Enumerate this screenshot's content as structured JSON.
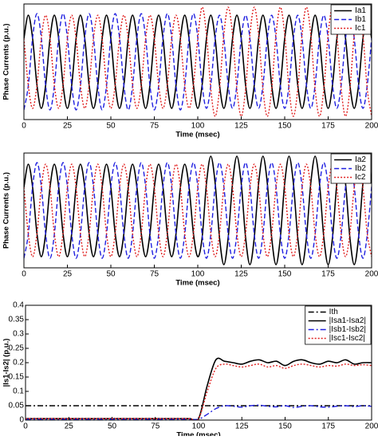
{
  "chart_data": [
    {
      "type": "line",
      "xlabel": "Time (msec)",
      "ylabel": "Phase Currents (p.u.)",
      "legend": "upper right",
      "xlim": [
        0,
        200
      ],
      "ylim": [
        -1.8,
        1.8
      ],
      "xticks": [
        0,
        25,
        50,
        75,
        100,
        125,
        150,
        175,
        200
      ],
      "x": [
        0,
        2.5,
        5,
        7.5,
        10,
        12.5,
        15,
        17.5,
        20,
        22.5,
        25,
        27.5,
        30,
        32.5,
        35,
        37.5,
        40,
        42.5,
        45,
        47.5,
        50,
        52.5,
        55,
        57.5,
        60,
        62.5,
        65,
        67.5,
        70,
        72.5,
        75,
        77.5,
        80,
        82.5,
        85,
        87.5,
        90,
        92.5,
        95,
        97.5,
        100,
        102.5,
        105,
        107.5,
        110,
        112.5,
        115,
        117.5,
        120,
        122.5,
        125,
        127.5,
        130,
        132.5,
        135,
        137.5,
        140,
        142.5,
        145,
        147.5,
        150,
        152.5,
        155,
        157.5,
        160,
        162.5,
        165,
        167.5,
        170,
        172.5,
        175,
        177.5,
        180,
        182.5,
        185,
        187.5,
        190,
        192.5,
        195,
        197.5,
        200
      ],
      "series": [
        {
          "name": "Ia1",
          "color": "#000000",
          "dash": "solid",
          "values": [
            0.725,
            1.45,
            0.725,
            -0.725,
            -1.45,
            -0.725,
            0.725,
            1.45,
            0.725,
            -0.725,
            -1.45,
            -0.725,
            0.725,
            1.45,
            0.725,
            -0.725,
            -1.45,
            -0.725,
            0.725,
            1.45,
            0.725,
            -0.725,
            -1.45,
            -0.725,
            0.725,
            1.45,
            0.725,
            -0.725,
            -1.45,
            -0.725,
            0.725,
            1.45,
            0.725,
            -0.725,
            -1.45,
            -0.725,
            0.725,
            1.45,
            0.725,
            -0.725,
            -1.45,
            -0.725,
            0.725,
            1.45,
            0.725,
            -0.725,
            -1.45,
            -0.725,
            0.725,
            1.45,
            0.725,
            -0.725,
            -1.45,
            -0.725,
            0.725,
            1.45,
            0.725,
            -0.725,
            -1.45,
            -0.725,
            0.725,
            1.45,
            0.725,
            -0.725,
            -1.45,
            -0.725,
            0.725,
            1.45,
            0.725,
            -0.725,
            -1.45,
            -0.725,
            0.725,
            1.45,
            0.725,
            -0.725,
            -1.45,
            -0.725,
            0.725,
            1.45,
            0.725
          ]
        },
        {
          "name": "Ib1",
          "color": "#1f1fe0",
          "dash": "dashed",
          "values": [
            -1.5,
            -0.75,
            0.75,
            1.5,
            0.75,
            -0.75,
            -1.5,
            -0.75,
            0.75,
            1.5,
            0.75,
            -0.75,
            -1.5,
            -0.75,
            0.75,
            1.5,
            0.75,
            -0.75,
            -1.5,
            -0.75,
            0.75,
            1.5,
            0.75,
            -0.75,
            -1.5,
            -0.75,
            0.75,
            1.5,
            0.75,
            -0.75,
            -1.5,
            -0.75,
            0.75,
            1.5,
            0.75,
            -0.75,
            -1.5,
            -0.75,
            0.75,
            1.5,
            0.75,
            -0.725,
            -1.45,
            -0.725,
            0.725,
            1.45,
            0.725,
            -0.725,
            -1.45,
            -0.725,
            0.725,
            1.45,
            0.725,
            -0.725,
            -1.45,
            -0.725,
            0.725,
            1.45,
            0.725,
            -0.725,
            -1.45,
            -0.725,
            0.725,
            1.45,
            0.725,
            -0.725,
            -1.45,
            -0.725,
            0.725,
            1.45,
            0.725,
            -0.725,
            -1.45,
            -0.725,
            0.725,
            1.45,
            0.725,
            -0.725,
            -1.45,
            -0.725,
            0.725
          ]
        },
        {
          "name": "Ic1",
          "color": "#e01f1f",
          "dash": "dotted",
          "values": [
            0.725,
            -0.725,
            -1.45,
            -0.725,
            0.725,
            1.45,
            0.725,
            -0.725,
            -1.45,
            -0.725,
            0.725,
            1.45,
            0.725,
            -0.725,
            -1.45,
            -0.725,
            0.725,
            1.45,
            0.725,
            -0.725,
            -1.45,
            -0.725,
            0.725,
            1.45,
            0.725,
            -0.725,
            -1.45,
            -0.725,
            0.725,
            1.45,
            0.725,
            -0.725,
            -1.45,
            -0.725,
            0.725,
            1.45,
            0.725,
            -0.725,
            -1.45,
            -0.725,
            0.725,
            1.7,
            0.85,
            -0.85,
            -1.7,
            -0.85,
            0.85,
            1.7,
            0.85,
            -0.85,
            -1.7,
            -0.85,
            0.85,
            1.7,
            0.85,
            -0.85,
            -1.7,
            -0.85,
            0.85,
            1.7,
            0.85,
            -0.85,
            -1.7,
            -0.85,
            0.85,
            1.7,
            0.85,
            -0.85,
            -1.7,
            -0.85,
            0.85,
            1.7,
            0.85,
            -0.85,
            -1.7,
            -0.85,
            0.85,
            1.7,
            0.85,
            -0.85,
            -1.7
          ]
        }
      ]
    },
    {
      "type": "line",
      "xlabel": "Time (msec)",
      "ylabel": "Phase Currents (p.u.)",
      "legend": "upper right",
      "xlim": [
        0,
        200
      ],
      "ylim": [
        -1.8,
        1.8
      ],
      "xticks": [
        0,
        25,
        50,
        75,
        100,
        125,
        150,
        175,
        200
      ],
      "x": [
        0,
        2.5,
        5,
        7.5,
        10,
        12.5,
        15,
        17.5,
        20,
        22.5,
        25,
        27.5,
        30,
        32.5,
        35,
        37.5,
        40,
        42.5,
        45,
        47.5,
        50,
        52.5,
        55,
        57.5,
        60,
        62.5,
        65,
        67.5,
        70,
        72.5,
        75,
        77.5,
        80,
        82.5,
        85,
        87.5,
        90,
        92.5,
        95,
        97.5,
        100,
        102.5,
        105,
        107.5,
        110,
        112.5,
        115,
        117.5,
        120,
        122.5,
        125,
        127.5,
        130,
        132.5,
        135,
        137.5,
        140,
        142.5,
        145,
        147.5,
        150,
        152.5,
        155,
        157.5,
        160,
        162.5,
        165,
        167.5,
        170,
        172.5,
        175,
        177.5,
        180,
        182.5,
        185,
        187.5,
        190,
        192.5,
        195,
        197.5,
        200
      ],
      "series": [
        {
          "name": "Ia2",
          "color": "#000000",
          "dash": "solid",
          "values": [
            0.725,
            1.45,
            0.725,
            -0.725,
            -1.45,
            -0.725,
            0.725,
            1.45,
            0.725,
            -0.725,
            -1.45,
            -0.725,
            0.725,
            1.45,
            0.725,
            -0.725,
            -1.45,
            -0.725,
            0.725,
            1.45,
            0.725,
            -0.725,
            -1.45,
            -0.725,
            0.725,
            1.45,
            0.725,
            -0.725,
            -1.45,
            -0.725,
            0.725,
            1.45,
            0.725,
            -0.725,
            -1.45,
            -0.725,
            0.725,
            1.45,
            0.725,
            -0.725,
            -1.45,
            -0.85,
            0.85,
            1.7,
            0.85,
            -0.85,
            -1.7,
            -0.85,
            0.85,
            1.7,
            0.85,
            -0.85,
            -1.7,
            -0.85,
            0.85,
            1.7,
            0.85,
            -0.85,
            -1.7,
            -0.85,
            0.85,
            1.7,
            0.85,
            -0.85,
            -1.7,
            -0.85,
            0.85,
            1.7,
            0.85,
            -0.85,
            -1.7,
            -0.85,
            0.85,
            1.7,
            0.85,
            -0.85,
            -1.7,
            -0.85,
            0.85,
            1.7,
            0.85
          ]
        },
        {
          "name": "Ib2",
          "color": "#1f1fe0",
          "dash": "dashed",
          "values": [
            -1.5,
            -0.75,
            0.75,
            1.5,
            0.75,
            -0.75,
            -1.5,
            -0.75,
            0.75,
            1.5,
            0.75,
            -0.75,
            -1.5,
            -0.75,
            0.75,
            1.5,
            0.75,
            -0.75,
            -1.5,
            -0.75,
            0.75,
            1.5,
            0.75,
            -0.75,
            -1.5,
            -0.75,
            0.75,
            1.5,
            0.75,
            -0.75,
            -1.5,
            -0.75,
            0.75,
            1.5,
            0.75,
            -0.75,
            -1.5,
            -0.75,
            0.75,
            1.5,
            0.75,
            -0.75,
            -1.5,
            -0.75,
            0.75,
            1.5,
            0.75,
            -0.75,
            -1.5,
            -0.75,
            0.75,
            1.5,
            0.75,
            -0.75,
            -1.5,
            -0.75,
            0.75,
            1.5,
            0.75,
            -0.75,
            -1.5,
            -0.75,
            0.75,
            1.5,
            0.75,
            -0.75,
            -1.5,
            -0.75,
            0.75,
            1.5,
            0.75,
            -0.75,
            -1.5,
            -0.75,
            0.75,
            1.5,
            0.75,
            -0.75,
            -1.5,
            -0.75,
            0.75
          ]
        },
        {
          "name": "Ic2",
          "color": "#e01f1f",
          "dash": "dotted",
          "values": [
            0.725,
            -0.725,
            -1.45,
            -0.725,
            0.725,
            1.45,
            0.725,
            -0.725,
            -1.45,
            -0.725,
            0.725,
            1.45,
            0.725,
            -0.725,
            -1.45,
            -0.725,
            0.725,
            1.45,
            0.725,
            -0.725,
            -1.45,
            -0.725,
            0.725,
            1.45,
            0.725,
            -0.725,
            -1.45,
            -0.725,
            0.725,
            1.45,
            0.725,
            -0.725,
            -1.45,
            -0.725,
            0.725,
            1.45,
            0.725,
            -0.725,
            -1.45,
            -0.725,
            0.725,
            1.45,
            0.725,
            -0.725,
            -1.45,
            -0.725,
            0.725,
            1.45,
            0.725,
            -0.725,
            -1.45,
            -0.725,
            0.725,
            1.45,
            0.725,
            -0.725,
            -1.45,
            -0.725,
            0.725,
            1.45,
            0.725,
            -0.725,
            -1.45,
            -0.725,
            0.725,
            1.45,
            0.725,
            -0.725,
            -1.45,
            -0.725,
            0.725,
            1.45,
            0.725,
            -0.725,
            -1.45,
            -0.725,
            0.725,
            1.45,
            0.725,
            -0.725,
            -1.45
          ]
        }
      ]
    },
    {
      "type": "line",
      "xlabel": "Time (msec)",
      "ylabel": "|Is1-Is2| (p.u.)",
      "legend": "upper right",
      "xlim": [
        0,
        200
      ],
      "ylim": [
        0,
        0.4
      ],
      "xticks": [
        0,
        25,
        50,
        75,
        100,
        125,
        150,
        175,
        200
      ],
      "yticks": [
        0,
        0.05,
        0.1,
        0.15,
        0.2,
        0.25,
        0.3,
        0.35,
        0.4
      ],
      "x": [
        0,
        5,
        10,
        15,
        20,
        25,
        30,
        35,
        40,
        45,
        50,
        55,
        60,
        65,
        70,
        75,
        80,
        85,
        90,
        95,
        100,
        105,
        110,
        115,
        120,
        125,
        130,
        135,
        140,
        145,
        150,
        155,
        160,
        165,
        170,
        175,
        180,
        185,
        190,
        195,
        200
      ],
      "series": [
        {
          "name": "Ith",
          "color": "#000000",
          "dash": "dashdot",
          "values": [
            0.05,
            0.05,
            0.05,
            0.05,
            0.05,
            0.05,
            0.05,
            0.05,
            0.05,
            0.05,
            0.05,
            0.05,
            0.05,
            0.05,
            0.05,
            0.05,
            0.05,
            0.05,
            0.05,
            0.05,
            0.05,
            0.05,
            0.05,
            0.05,
            0.05,
            0.05,
            0.05,
            0.05,
            0.05,
            0.05,
            0.05,
            0.05,
            0.05,
            0.05,
            0.05,
            0.05,
            0.05,
            0.05,
            0.05,
            0.05,
            0.05
          ]
        },
        {
          "name": "|Isa1-Isa2|",
          "color": "#000000",
          "dash": "solid",
          "values": [
            0.005,
            0.005,
            0.005,
            0.005,
            0.005,
            0.005,
            0.005,
            0.005,
            0.005,
            0.005,
            0.005,
            0.005,
            0.005,
            0.005,
            0.005,
            0.005,
            0.005,
            0.005,
            0.005,
            0.005,
            0.005,
            0.12,
            0.21,
            0.205,
            0.2,
            0.195,
            0.205,
            0.21,
            0.2,
            0.205,
            0.19,
            0.205,
            0.21,
            0.2,
            0.195,
            0.205,
            0.2,
            0.21,
            0.195,
            0.2,
            0.2
          ]
        },
        {
          "name": "|Isb1-Isb2|",
          "color": "#1f1fe0",
          "dash": "dashdot",
          "values": [
            0.003,
            0.003,
            0.003,
            0.003,
            0.003,
            0.003,
            0.003,
            0.003,
            0.003,
            0.003,
            0.003,
            0.003,
            0.003,
            0.003,
            0.003,
            0.003,
            0.003,
            0.003,
            0.003,
            0.003,
            0.003,
            0.02,
            0.04,
            0.05,
            0.048,
            0.045,
            0.05,
            0.052,
            0.048,
            0.046,
            0.05,
            0.044,
            0.048,
            0.05,
            0.046,
            0.045,
            0.048,
            0.05,
            0.047,
            0.05,
            0.048
          ]
        },
        {
          "name": "|Isc1-Isc2|",
          "color": "#e01f1f",
          "dash": "dotted",
          "values": [
            0.005,
            0.005,
            0.005,
            0.005,
            0.005,
            0.005,
            0.005,
            0.005,
            0.005,
            0.005,
            0.005,
            0.005,
            0.005,
            0.005,
            0.005,
            0.005,
            0.005,
            0.005,
            0.005,
            0.005,
            0.005,
            0.1,
            0.18,
            0.195,
            0.19,
            0.185,
            0.19,
            0.195,
            0.185,
            0.19,
            0.18,
            0.19,
            0.195,
            0.19,
            0.185,
            0.19,
            0.188,
            0.195,
            0.19,
            0.193,
            0.19
          ]
        }
      ]
    }
  ]
}
